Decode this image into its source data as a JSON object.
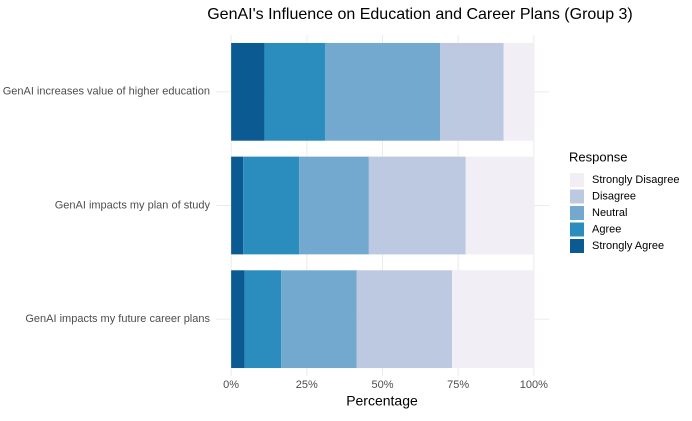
{
  "chart_data": {
    "type": "stacked-bar-horizontal",
    "title": "GenAI's Influence on Education and Career Plans (Group 3)",
    "x_label": "Percentage",
    "legend_title": "Response",
    "categories": [
      "GenAI increases value of higher education",
      "GenAI impacts my plan of study",
      "GenAI impacts my future career plans"
    ],
    "series": [
      {
        "name": "Strongly Agree",
        "color": "#0b5a92",
        "values": [
          11,
          4,
          4.5
        ]
      },
      {
        "name": "Agree",
        "color": "#2b8cbe",
        "values": [
          20,
          18.5,
          12
        ]
      },
      {
        "name": "Neutral",
        "color": "#74a9cf",
        "values": [
          38,
          23,
          25
        ]
      },
      {
        "name": "Disagree",
        "color": "#bdc9e1",
        "values": [
          21,
          32,
          31.5
        ]
      },
      {
        "name": "Strongly Disagree",
        "color": "#f1eef6",
        "values": [
          10,
          22.5,
          27
        ]
      }
    ],
    "xlim": [
      -5,
      105
    ],
    "xticks": [
      {
        "value": 0,
        "label": "0%"
      },
      {
        "value": 25,
        "label": "25%"
      },
      {
        "value": 50,
        "label": "50%"
      },
      {
        "value": 75,
        "label": "75%"
      },
      {
        "value": 100,
        "label": "100%"
      }
    ],
    "grid": true,
    "legend_position": "right"
  }
}
